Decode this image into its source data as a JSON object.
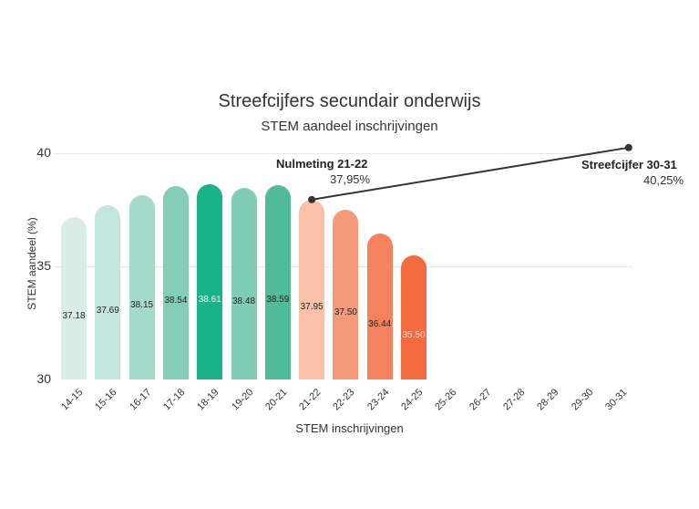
{
  "chart_data": {
    "type": "bar",
    "title": "Streefcijfers secundair onderwijs",
    "subtitle": "STEM aandeel inschrijvingen",
    "xlabel": "STEM inschrijvingen",
    "ylabel": "STEM aandeel (%)",
    "ylim": [
      30,
      40.5
    ],
    "yticks": [
      "30",
      "35",
      "40"
    ],
    "grid": true,
    "categories": [
      "14-15",
      "15-16",
      "16-17",
      "17-18",
      "18-19",
      "19-20",
      "20-21",
      "21-22",
      "22-23",
      "23-24",
      "24-25",
      "25-26",
      "26-27",
      "27-28",
      "28-29",
      "29-30",
      "30-31"
    ],
    "values": [
      37.18,
      37.69,
      38.15,
      38.54,
      38.61,
      38.48,
      38.59,
      37.95,
      37.5,
      36.44,
      35.5,
      null,
      null,
      null,
      null,
      null,
      null
    ],
    "value_labels": [
      "37.18",
      "37.69",
      "38.15",
      "38.54",
      "38.61",
      "38.48",
      "38.59",
      "37.95",
      "37.50",
      "36.44",
      "35.50"
    ],
    "bar_colors": [
      "#d9ece6",
      "#c4e6de",
      "#a3dac9",
      "#84cdb6",
      "#1ab387",
      "#7fcdb5",
      "#4fbb98",
      "#fbc0aa",
      "#f29a7a",
      "#f4825e",
      "#f26a3d"
    ],
    "label_colors": [
      "#222222",
      "#222222",
      "#222222",
      "#222222",
      "#e8fff6",
      "#222222",
      "#222222",
      "#222222",
      "#222222",
      "#222222",
      "#ffe3d6"
    ],
    "trend_line": {
      "from": {
        "category": "21-22",
        "value": 37.95
      },
      "to": {
        "category": "30-31",
        "value": 40.25
      },
      "color": "#333333"
    },
    "annotations": [
      {
        "title": "Nulmeting 21-22",
        "value": "37,95%"
      },
      {
        "title": "Streefcijfer 30-31",
        "value": "40,25%"
      }
    ]
  }
}
